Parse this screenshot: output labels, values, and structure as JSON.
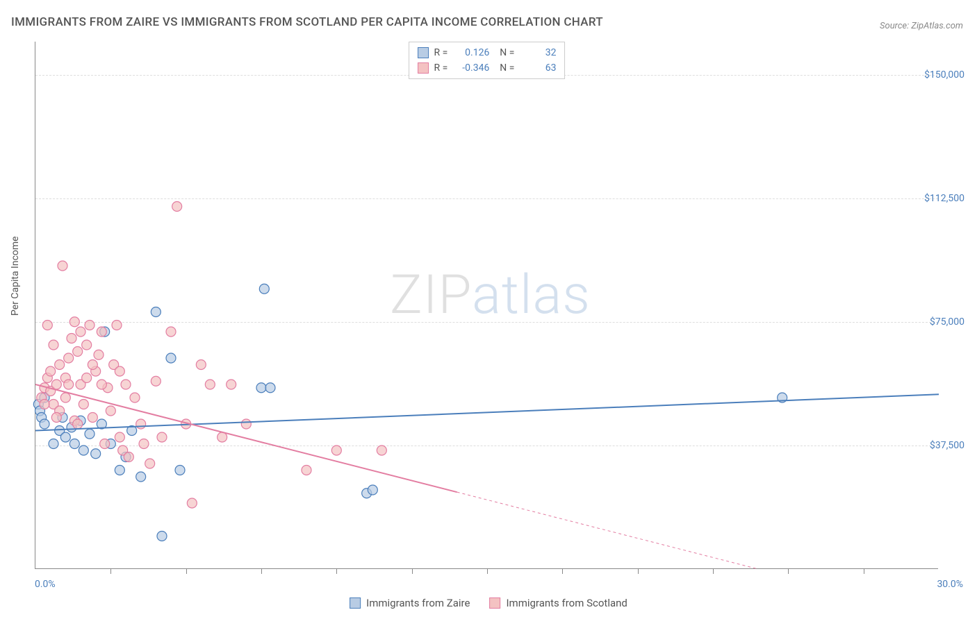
{
  "title": "IMMIGRANTS FROM ZAIRE VS IMMIGRANTS FROM SCOTLAND PER CAPITA INCOME CORRELATION CHART",
  "source": "Source: ZipAtlas.com",
  "y_axis_label": "Per Capita Income",
  "watermark_a": "ZIP",
  "watermark_b": "atlas",
  "chart": {
    "type": "scatter",
    "xlim": [
      0,
      30
    ],
    "ylim": [
      0,
      160000
    ],
    "x_min_label": "0.0%",
    "x_max_label": "30.0%",
    "y_ticks": [
      37500,
      75000,
      112500,
      150000
    ],
    "y_tick_labels": [
      "$37,500",
      "$75,000",
      "$112,500",
      "$150,000"
    ],
    "x_tick_positions": [
      2.5,
      5.0,
      7.5,
      10.0,
      12.5,
      15.0,
      17.5,
      20.0,
      22.5,
      25.0,
      27.5
    ],
    "background_color": "#ffffff",
    "grid_color": "#dddddd",
    "axis_color": "#888888",
    "tick_label_color": "#4a7ebb",
    "marker_radius": 7,
    "marker_stroke_width": 1.2,
    "trend_line_width": 2,
    "trend_dash_width": 1,
    "series": [
      {
        "name": "Immigrants from Zaire",
        "fill": "#b8cce4",
        "stroke": "#4a7ebb",
        "r_value": "0.126",
        "n_value": "32",
        "trend": {
          "x1": 0,
          "y1": 42000,
          "x2": 30,
          "y2": 53000,
          "solid_until_x": 30
        },
        "points": [
          [
            0.1,
            50000
          ],
          [
            0.15,
            48000
          ],
          [
            0.2,
            46000
          ],
          [
            0.3,
            52000
          ],
          [
            0.3,
            44000
          ],
          [
            0.6,
            38000
          ],
          [
            0.8,
            42000
          ],
          [
            0.9,
            46000
          ],
          [
            1.0,
            40000
          ],
          [
            1.2,
            43000
          ],
          [
            1.3,
            38000
          ],
          [
            1.5,
            45000
          ],
          [
            1.6,
            36000
          ],
          [
            1.8,
            41000
          ],
          [
            2.0,
            35000
          ],
          [
            2.2,
            44000
          ],
          [
            2.3,
            72000
          ],
          [
            2.5,
            38000
          ],
          [
            2.8,
            30000
          ],
          [
            3.0,
            34000
          ],
          [
            3.2,
            42000
          ],
          [
            3.5,
            28000
          ],
          [
            4.0,
            78000
          ],
          [
            4.5,
            64000
          ],
          [
            4.8,
            30000
          ],
          [
            4.2,
            10000
          ],
          [
            7.5,
            55000
          ],
          [
            7.6,
            85000
          ],
          [
            11.0,
            23000
          ],
          [
            11.2,
            24000
          ],
          [
            7.8,
            55000
          ],
          [
            24.8,
            52000
          ]
        ]
      },
      {
        "name": "Immigrants from Scotland",
        "fill": "#f4c2c2",
        "stroke": "#e37da1",
        "r_value": "-0.346",
        "n_value": "63",
        "trend": {
          "x1": 0,
          "y1": 56000,
          "x2": 24,
          "y2": 0,
          "solid_until_x": 14
        },
        "points": [
          [
            0.2,
            52000
          ],
          [
            0.3,
            55000
          ],
          [
            0.4,
            58000
          ],
          [
            0.5,
            54000
          ],
          [
            0.5,
            60000
          ],
          [
            0.6,
            50000
          ],
          [
            0.7,
            56000
          ],
          [
            0.8,
            62000
          ],
          [
            0.8,
            48000
          ],
          [
            0.9,
            92000
          ],
          [
            1.0,
            58000
          ],
          [
            1.0,
            52000
          ],
          [
            1.1,
            64000
          ],
          [
            1.2,
            70000
          ],
          [
            1.3,
            45000
          ],
          [
            1.4,
            66000
          ],
          [
            1.5,
            72000
          ],
          [
            1.5,
            56000
          ],
          [
            1.6,
            50000
          ],
          [
            1.7,
            68000
          ],
          [
            1.8,
            74000
          ],
          [
            1.9,
            46000
          ],
          [
            2.0,
            60000
          ],
          [
            2.1,
            65000
          ],
          [
            2.2,
            72000
          ],
          [
            2.3,
            38000
          ],
          [
            2.4,
            55000
          ],
          [
            2.5,
            48000
          ],
          [
            2.6,
            62000
          ],
          [
            2.7,
            74000
          ],
          [
            2.8,
            40000
          ],
          [
            2.9,
            36000
          ],
          [
            3.0,
            56000
          ],
          [
            3.1,
            34000
          ],
          [
            3.3,
            52000
          ],
          [
            3.5,
            44000
          ],
          [
            3.6,
            38000
          ],
          [
            3.8,
            32000
          ],
          [
            4.0,
            57000
          ],
          [
            4.2,
            40000
          ],
          [
            4.5,
            72000
          ],
          [
            4.7,
            110000
          ],
          [
            5.0,
            44000
          ],
          [
            5.2,
            20000
          ],
          [
            5.5,
            62000
          ],
          [
            5.8,
            56000
          ],
          [
            6.2,
            40000
          ],
          [
            6.5,
            56000
          ],
          [
            7.0,
            44000
          ],
          [
            9.0,
            30000
          ],
          [
            10.0,
            36000
          ],
          [
            11.5,
            36000
          ],
          [
            0.4,
            74000
          ],
          [
            0.6,
            68000
          ],
          [
            1.1,
            56000
          ],
          [
            1.3,
            75000
          ],
          [
            1.7,
            58000
          ],
          [
            2.2,
            56000
          ],
          [
            2.8,
            60000
          ],
          [
            1.9,
            62000
          ],
          [
            0.3,
            50000
          ],
          [
            0.7,
            46000
          ],
          [
            1.4,
            44000
          ]
        ]
      }
    ]
  },
  "legend_bottom": [
    {
      "label": "Immigrants from Zaire",
      "fill": "#b8cce4",
      "stroke": "#4a7ebb"
    },
    {
      "label": "Immigrants from Scotland",
      "fill": "#f4c2c2",
      "stroke": "#e37da1"
    }
  ]
}
